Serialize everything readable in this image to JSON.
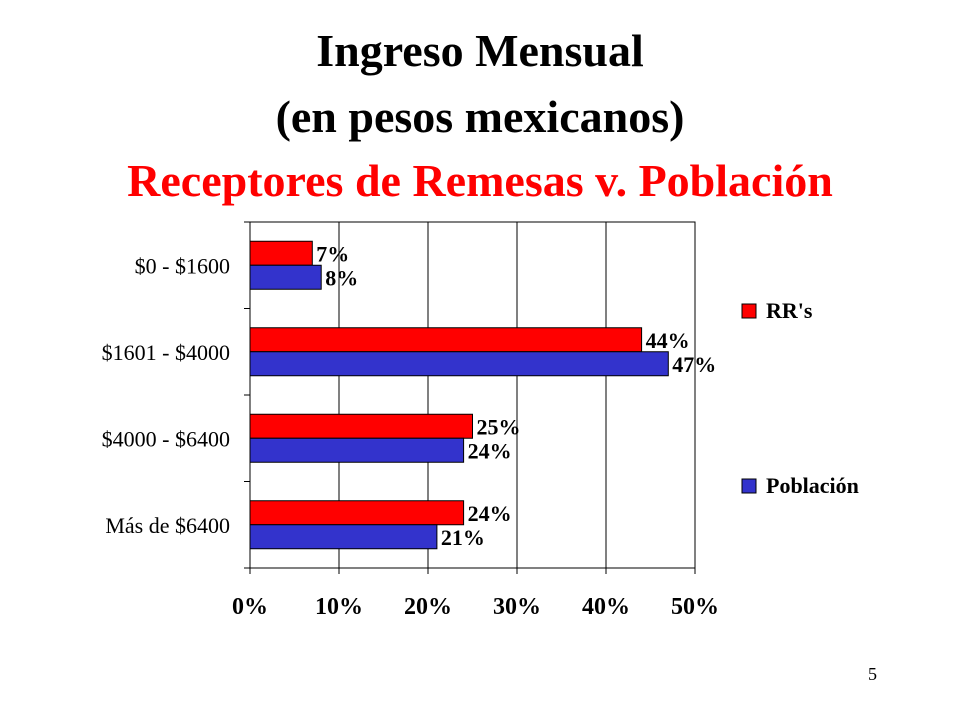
{
  "title": {
    "line1": "Ingreso Mensual",
    "line2": "(en pesos mexicanos)",
    "line3": "Receptores de Remesas v. Población"
  },
  "colors": {
    "title_accent": "#ff0000",
    "rrs": "#ff0000",
    "poblacion": "#3333cc"
  },
  "chart_data": {
    "type": "bar",
    "orientation": "horizontal",
    "categories": [
      "$0 - $1600",
      "$1601 - $4000",
      "$4000 - $6400",
      "Más de $6400"
    ],
    "series": [
      {
        "name": "RR's",
        "values": [
          7,
          44,
          25,
          24
        ],
        "labels": [
          "7%",
          "44%",
          "25%",
          "24%"
        ]
      },
      {
        "name": "Población",
        "values": [
          8,
          47,
          24,
          21
        ],
        "labels": [
          "8%",
          "47%",
          "24%",
          "21%"
        ]
      }
    ],
    "xlim": [
      0,
      50
    ],
    "xticks": [
      "0%",
      "10%",
      "20%",
      "30%",
      "40%",
      "50%"
    ],
    "grid": true,
    "legend_position": "right"
  },
  "page_number": "5"
}
